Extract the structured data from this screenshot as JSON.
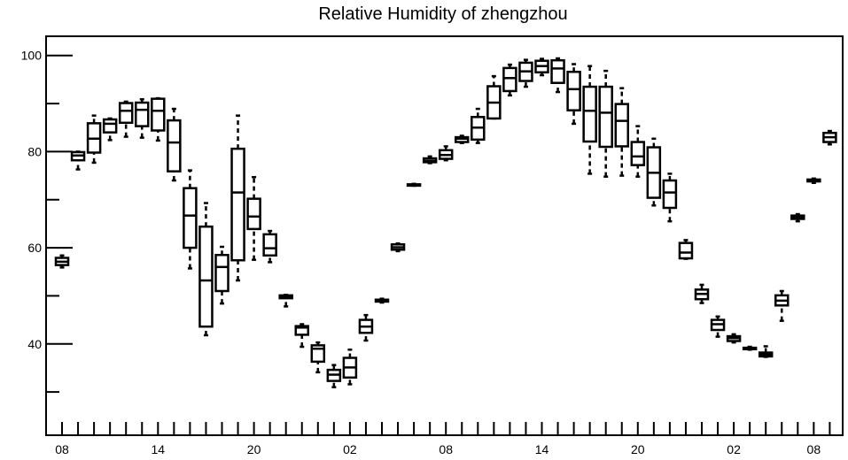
{
  "chart_data": {
    "type": "box",
    "title": "Relative Humidity of zhengzhou",
    "xlabel": "",
    "ylabel": "",
    "ylim": [
      21,
      104
    ],
    "xlim": [
      0,
      48
    ],
    "y_ticks": [
      40,
      60,
      80,
      100
    ],
    "y_tick_labels": [
      "40",
      "60",
      "80",
      "100"
    ],
    "x_ticks": [
      0.5,
      6.5,
      12.5,
      18.5,
      24.5,
      30.5,
      36.5,
      42.5,
      47.5
    ],
    "x_tick_labels": [
      "08",
      "14",
      "20",
      "02",
      "08",
      "14",
      "20",
      "02",
      "08"
    ],
    "grid": false,
    "colors": {
      "box": "#000000",
      "background": "#ffffff"
    },
    "boxes": [
      {
        "x": 0.5,
        "whisker_low": 55.9,
        "q1": 56.4,
        "median": 57.1,
        "q3": 57.9,
        "whisker_high": 58.4
      },
      {
        "x": 1.5,
        "whisker_low": 76.3,
        "q1": 78.2,
        "median": 79.2,
        "q3": 79.9,
        "whisker_high": 80.0
      },
      {
        "x": 2.5,
        "whisker_low": 77.7,
        "q1": 79.8,
        "median": 82.7,
        "q3": 85.9,
        "whisker_high": 87.5
      },
      {
        "x": 3.5,
        "whisker_low": 82.4,
        "q1": 84.0,
        "median": 85.8,
        "q3": 86.7,
        "whisker_high": 86.9
      },
      {
        "x": 4.5,
        "whisker_low": 83.1,
        "q1": 86.0,
        "median": 88.5,
        "q3": 90.1,
        "whisker_high": 90.4
      },
      {
        "x": 5.5,
        "whisker_low": 82.9,
        "q1": 85.3,
        "median": 88.7,
        "q3": 90.2,
        "whisker_high": 90.9
      },
      {
        "x": 6.5,
        "whisker_low": 82.3,
        "q1": 84.4,
        "median": 88.5,
        "q3": 91.0,
        "whisker_high": 91.1
      },
      {
        "x": 7.5,
        "whisker_low": 74.0,
        "q1": 75.9,
        "median": 81.9,
        "q3": 86.5,
        "whisker_high": 88.9
      },
      {
        "x": 8.5,
        "whisker_low": 55.7,
        "q1": 60.0,
        "median": 66.7,
        "q3": 72.4,
        "whisker_high": 76.1
      },
      {
        "x": 9.5,
        "whisker_low": 41.8,
        "q1": 43.6,
        "median": 53.2,
        "q3": 64.4,
        "whisker_high": 69.3
      },
      {
        "x": 10.5,
        "whisker_low": 48.4,
        "q1": 51.0,
        "median": 56.0,
        "q3": 58.5,
        "whisker_high": 60.2
      },
      {
        "x": 11.5,
        "whisker_low": 53.2,
        "q1": 57.4,
        "median": 71.5,
        "q3": 80.6,
        "whisker_high": 87.5
      },
      {
        "x": 12.5,
        "whisker_low": 57.5,
        "q1": 63.9,
        "median": 66.5,
        "q3": 70.2,
        "whisker_high": 74.7
      },
      {
        "x": 13.5,
        "whisker_low": 57.0,
        "q1": 58.4,
        "median": 59.9,
        "q3": 62.8,
        "whisker_high": 63.5
      },
      {
        "x": 14.5,
        "whisker_low": 47.8,
        "q1": 49.5,
        "median": 49.8,
        "q3": 50.1,
        "whisker_high": 50.2
      },
      {
        "x": 15.5,
        "whisker_low": 39.4,
        "q1": 41.9,
        "median": 43.4,
        "q3": 43.7,
        "whisker_high": 44.1
      },
      {
        "x": 16.5,
        "whisker_low": 34.1,
        "q1": 36.3,
        "median": 39.0,
        "q3": 39.7,
        "whisker_high": 40.3
      },
      {
        "x": 17.5,
        "whisker_low": 31.0,
        "q1": 32.3,
        "median": 33.6,
        "q3": 34.6,
        "whisker_high": 35.6
      },
      {
        "x": 18.5,
        "whisker_low": 31.6,
        "q1": 33.0,
        "median": 35.1,
        "q3": 37.1,
        "whisker_high": 38.8
      },
      {
        "x": 19.5,
        "whisker_low": 40.7,
        "q1": 42.3,
        "median": 43.6,
        "q3": 45.0,
        "whisker_high": 46.0
      },
      {
        "x": 20.5,
        "whisker_low": 48.6,
        "q1": 48.8,
        "median": 49.0,
        "q3": 49.2,
        "whisker_high": 49.4
      },
      {
        "x": 21.5,
        "whisker_low": 59.3,
        "q1": 59.6,
        "median": 60.1,
        "q3": 60.7,
        "whisker_high": 60.9
      },
      {
        "x": 22.5,
        "whisker_low": 72.9,
        "q1": 73.0,
        "median": 73.1,
        "q3": 73.2,
        "whisker_high": 73.3
      },
      {
        "x": 23.5,
        "whisker_low": 77.6,
        "q1": 77.8,
        "median": 78.1,
        "q3": 78.6,
        "whisker_high": 79.0
      },
      {
        "x": 24.5,
        "whisker_low": 78.2,
        "q1": 78.5,
        "median": 79.3,
        "q3": 80.3,
        "whisker_high": 81.1
      },
      {
        "x": 25.5,
        "whisker_low": 81.8,
        "q1": 82.0,
        "median": 82.7,
        "q3": 83.0,
        "whisker_high": 83.3
      },
      {
        "x": 26.5,
        "whisker_low": 81.8,
        "q1": 82.5,
        "median": 85.0,
        "q3": 87.2,
        "whisker_high": 88.9
      },
      {
        "x": 27.5,
        "whisker_low": 86.9,
        "q1": 86.9,
        "median": 90.2,
        "q3": 93.6,
        "whisker_high": 95.7
      },
      {
        "x": 28.5,
        "whisker_low": 91.7,
        "q1": 92.6,
        "median": 95.3,
        "q3": 97.4,
        "whisker_high": 98.1
      },
      {
        "x": 29.5,
        "whisker_low": 93.5,
        "q1": 94.7,
        "median": 96.7,
        "q3": 98.5,
        "whisker_high": 99.1
      },
      {
        "x": 30.5,
        "whisker_low": 95.9,
        "q1": 96.5,
        "median": 97.8,
        "q3": 98.9,
        "whisker_high": 99.3
      },
      {
        "x": 31.5,
        "whisker_low": 92.4,
        "q1": 94.3,
        "median": 97.3,
        "q3": 99.0,
        "whisker_high": 99.4
      },
      {
        "x": 32.5,
        "whisker_low": 85.8,
        "q1": 88.6,
        "median": 93.0,
        "q3": 96.6,
        "whisker_high": 98.2
      },
      {
        "x": 33.5,
        "whisker_low": 75.4,
        "q1": 82.1,
        "median": 88.5,
        "q3": 93.5,
        "whisker_high": 97.8
      },
      {
        "x": 34.5,
        "whisker_low": 74.8,
        "q1": 81.0,
        "median": 88.1,
        "q3": 93.5,
        "whisker_high": 96.8
      },
      {
        "x": 35.5,
        "whisker_low": 75.0,
        "q1": 81.1,
        "median": 86.4,
        "q3": 89.9,
        "whisker_high": 93.2
      },
      {
        "x": 36.5,
        "whisker_low": 74.8,
        "q1": 77.2,
        "median": 79.0,
        "q3": 82.0,
        "whisker_high": 85.3
      },
      {
        "x": 37.5,
        "whisker_low": 68.8,
        "q1": 70.4,
        "median": 75.6,
        "q3": 80.9,
        "whisker_high": 82.7
      },
      {
        "x": 38.5,
        "whisker_low": 65.5,
        "q1": 68.3,
        "median": 71.5,
        "q3": 74.0,
        "whisker_high": 75.4
      },
      {
        "x": 39.5,
        "whisker_low": 57.7,
        "q1": 57.8,
        "median": 59.0,
        "q3": 61.0,
        "whisker_high": 61.6
      },
      {
        "x": 40.5,
        "whisker_low": 48.5,
        "q1": 49.3,
        "median": 50.4,
        "q3": 51.3,
        "whisker_high": 52.3
      },
      {
        "x": 41.5,
        "whisker_low": 41.5,
        "q1": 42.9,
        "median": 44.1,
        "q3": 45.0,
        "whisker_high": 45.7
      },
      {
        "x": 42.5,
        "whisker_low": 40.3,
        "q1": 40.6,
        "median": 41.2,
        "q3": 41.6,
        "whisker_high": 42.0
      },
      {
        "x": 43.5,
        "whisker_low": 38.8,
        "q1": 38.9,
        "median": 39.0,
        "q3": 39.2,
        "whisker_high": 39.4
      },
      {
        "x": 44.5,
        "whisker_low": 37.3,
        "q1": 37.4,
        "median": 37.8,
        "q3": 38.2,
        "whisker_high": 39.5
      },
      {
        "x": 45.5,
        "whisker_low": 44.8,
        "q1": 48.0,
        "median": 49.0,
        "q3": 50.1,
        "whisker_high": 51.0
      },
      {
        "x": 46.5,
        "whisker_low": 65.5,
        "q1": 66.0,
        "median": 66.3,
        "q3": 66.7,
        "whisker_high": 67.0
      },
      {
        "x": 47.5,
        "whisker_low": 73.5,
        "q1": 73.8,
        "median": 74.0,
        "q3": 74.2,
        "whisker_high": 74.4
      },
      {
        "x": 48.5,
        "whisker_low": 81.5,
        "q1": 82.0,
        "median": 83.0,
        "q3": 83.9,
        "whisker_high": 84.3
      }
    ]
  }
}
